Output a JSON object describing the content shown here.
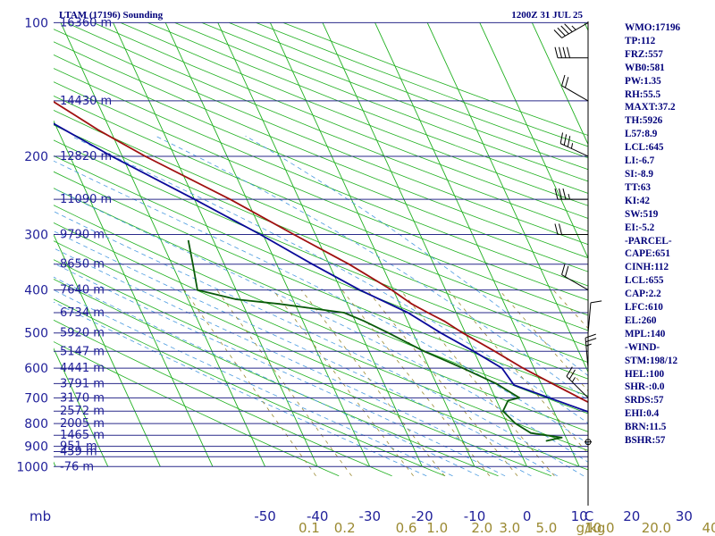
{
  "header": {
    "station_title": "LTAM (17196) Sounding",
    "valid_time": "1200Z 31 JUL 25"
  },
  "indices": [
    "WMO:17196",
    "TP:112",
    "FRZ:557",
    "WB0:581",
    "PW:1.35",
    "RH:55.5",
    "MAXT:37.2",
    "TH:5926",
    "L57:8.9",
    "LCL:645",
    "LI:-6.7",
    "SI:-8.9",
    "TT:63",
    "KI:42",
    "SW:519",
    "EI:-5.2",
    "-PARCEL-",
    "CAPE:651",
    "CINH:112",
    "LCL:655",
    "CAP:2.2",
    "LFC:610",
    "EL:260",
    "MPL:140",
    "-WIND-",
    "STM:198/12",
    "HEL:100",
    "SHR-:0.0",
    "SRDS:57",
    "EHI:0.4",
    "BRN:11.5",
    "BSHR:57"
  ],
  "chart_data": {
    "type": "line",
    "chart_kind": "skew-T log-P sounding diagram",
    "y_axis": {
      "unit": "hPa",
      "scale": "log",
      "range": [
        1000,
        100
      ]
    },
    "x_axis": {
      "unit_label": "C",
      "range": [
        -50,
        50
      ],
      "ticks": [
        "-50",
        "-40",
        "-30",
        "-20",
        "-10",
        "0",
        "10",
        "20",
        "30",
        "40"
      ]
    },
    "mixing_ratio_axis": {
      "unit_label": "g/kg",
      "ticks": [
        "0.1",
        "0.2",
        "0.6",
        "1.0",
        "2.0",
        "3.0",
        "5.0",
        "10.0",
        "20.0",
        "40.0"
      ]
    },
    "mb_label": "mb",
    "pressure_levels": [
      {
        "p": "100",
        "h": "16360 m"
      },
      {
        "p": "200",
        "h": "12820 m"
      },
      {
        "p": "300",
        "h": "9790 m"
      },
      {
        "p": "400",
        "h": "7640 m"
      },
      {
        "p": "500",
        "h": "5920 m"
      },
      {
        "p": "600",
        "h": "4441 m"
      },
      {
        "p": "700",
        "h": "3170 m"
      },
      {
        "p": "800",
        "h": "2005 m"
      },
      {
        "p": "900",
        "h": "951 m"
      },
      {
        "p": "1000",
        "h": "-76 m"
      }
    ],
    "height_only_labels": [
      {
        "p": 150,
        "h": "14430 m"
      },
      {
        "p": 250,
        "h": "11090 m"
      },
      {
        "p": 350,
        "h": "8650 m"
      },
      {
        "p": 450,
        "h": "6734 m"
      },
      {
        "p": 550,
        "h": "5147 m"
      },
      {
        "p": 650,
        "h": "3791 m"
      },
      {
        "p": 750,
        "h": "2572 m"
      },
      {
        "p": 850,
        "h": "1465 m"
      },
      {
        "p": 925,
        "h": "459 m"
      }
    ],
    "series": [
      {
        "name": "Temperature",
        "color": "#a01010",
        "points": [
          [
            880,
            30.4
          ],
          [
            850,
            26.9
          ],
          [
            800,
            23.4
          ],
          [
            750,
            19.9
          ],
          [
            700,
            16.1
          ],
          [
            650,
            12.1
          ],
          [
            600,
            7.9
          ],
          [
            550,
            4.0
          ],
          [
            500,
            -0.5
          ],
          [
            470,
            -3.0
          ],
          [
            450,
            -5.4
          ],
          [
            430,
            -7.7
          ],
          [
            400,
            -10.3
          ],
          [
            350,
            -16.2
          ],
          [
            300,
            -24.1
          ],
          [
            250,
            -33.2
          ],
          [
            200,
            -45.6
          ],
          [
            175,
            -52.1
          ],
          [
            150,
            -58.5
          ],
          [
            130,
            -65.4
          ],
          [
            110,
            -71.0
          ],
          [
            100,
            -74.0
          ]
        ]
      },
      {
        "name": "Dewpoint",
        "color": "#0a5a0a",
        "points": [
          [
            875,
            6.0
          ],
          [
            860,
            9.2
          ],
          [
            840,
            3.7
          ],
          [
            800,
            1.6
          ],
          [
            750,
            0.3
          ],
          [
            710,
            2.2
          ],
          [
            700,
            4.6
          ],
          [
            650,
            1.4
          ],
          [
            600,
            -3.6
          ],
          [
            550,
            -9.5
          ],
          [
            500,
            -14.7
          ],
          [
            470,
            -18.3
          ],
          [
            450,
            -21.4
          ],
          [
            430,
            -33.0
          ],
          [
            420,
            -40.8
          ],
          [
            400,
            -47.4
          ],
          [
            350,
            -46.0
          ],
          [
            310,
            -44.8
          ]
        ]
      },
      {
        "name": "Parcel",
        "color": "#0a0a9a",
        "points": [
          [
            880,
            30.2
          ],
          [
            850,
            25.8
          ],
          [
            800,
            21.3
          ],
          [
            750,
            16.2
          ],
          [
            700,
            10.3
          ],
          [
            655,
            4.7
          ],
          [
            600,
            3.9
          ],
          [
            550,
            0.0
          ],
          [
            500,
            -4.7
          ],
          [
            450,
            -9.2
          ],
          [
            400,
            -16.4
          ],
          [
            350,
            -23.2
          ],
          [
            300,
            -30.5
          ],
          [
            250,
            -40.0
          ],
          [
            200,
            -52.0
          ],
          [
            150,
            -66.0
          ],
          [
            120,
            -76.0
          ],
          [
            108,
            -80.0
          ]
        ]
      }
    ],
    "wind_barbs": [
      {
        "p": 880,
        "dir": 330,
        "kt": 2
      },
      {
        "p": 700,
        "dir": 315,
        "kt": 25
      },
      {
        "p": 600,
        "dir": 355,
        "kt": 25
      },
      {
        "p": 500,
        "dir": 5,
        "kt": 10
      },
      {
        "p": 400,
        "dir": 300,
        "kt": 20
      },
      {
        "p": 300,
        "dir": 270,
        "kt": 20
      },
      {
        "p": 250,
        "dir": 270,
        "kt": 35
      },
      {
        "p": 200,
        "dir": 295,
        "kt": 35
      },
      {
        "p": 150,
        "dir": 300,
        "kt": 20
      },
      {
        "p": 120,
        "dir": 270,
        "kt": 40
      },
      {
        "p": 100,
        "dir": 240,
        "kt": 45
      }
    ],
    "colors": {
      "isobar": "#2a2a8a",
      "isotherm": "#20b020",
      "dry_adiabat": "#20b020",
      "moist_adiabat": "#4a9ae0",
      "mixing_ratio": "#9b8a32",
      "label_text": "#1f1f99"
    }
  }
}
